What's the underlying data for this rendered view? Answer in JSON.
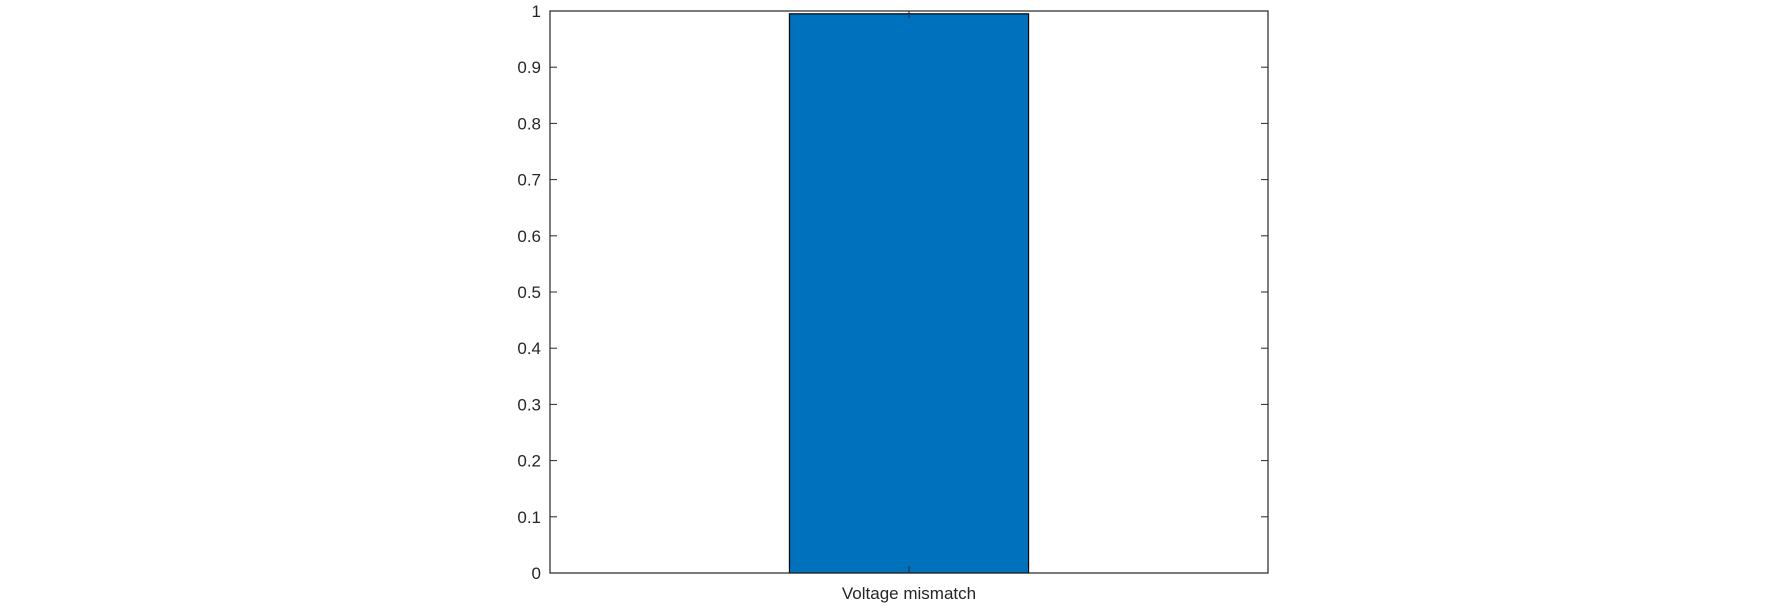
{
  "chart_data": {
    "type": "bar",
    "categories": [
      "Voltage mismatch"
    ],
    "values": [
      0.995
    ],
    "title": "",
    "xlabel": "",
    "ylabel": "",
    "ylim": [
      0,
      1
    ],
    "yticks": [
      "0",
      "0.1",
      "0.2",
      "0.3",
      "0.4",
      "0.5",
      "0.6",
      "0.7",
      "0.8",
      "0.9",
      "1"
    ],
    "grid": false,
    "bar_color": "#0072BD"
  }
}
